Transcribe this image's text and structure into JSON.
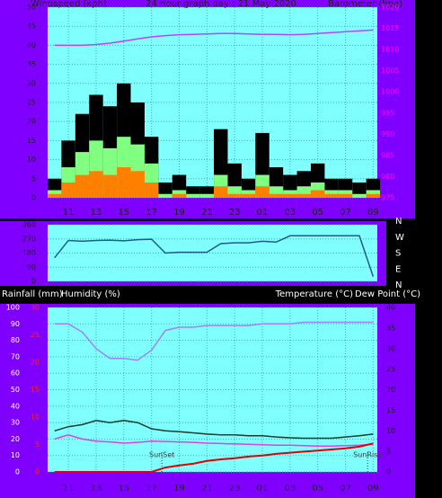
{
  "chart_data": [
    {
      "type": "bar",
      "title": "24 hour graph day : 21 May 2020",
      "y_label": "Windspeed (kph)",
      "y2_label": "Barometer (hpa)",
      "x": [
        10,
        11,
        12,
        13,
        14,
        15,
        16,
        17,
        18,
        19,
        20,
        21,
        22,
        23,
        24,
        25,
        26,
        27,
        28,
        29,
        30,
        31,
        32,
        33
      ],
      "xlim": [
        9.5,
        33.3
      ],
      "xticks": [
        11,
        13,
        15,
        17,
        19,
        21,
        23,
        {
          "value": 25,
          "label": "01"
        },
        {
          "value": 27,
          "label": "03"
        },
        {
          "value": 29,
          "label": "05"
        },
        {
          "value": 31,
          "label": "07"
        },
        {
          "value": 33,
          "label": "09"
        }
      ],
      "ylim": [
        0,
        50
      ],
      "yticks": [
        0,
        5,
        10,
        15,
        20,
        25,
        30,
        35,
        40,
        45,
        50
      ],
      "y2lim": [
        975,
        1020
      ],
      "y2ticks": [
        975,
        980,
        985,
        990,
        995,
        1000,
        1005,
        1010,
        1015,
        1020
      ],
      "grid": true,
      "series": [
        {
          "mark": "bar",
          "color": "#000000",
          "values": [
            5,
            15,
            22,
            27,
            24,
            30,
            25,
            16,
            4,
            6,
            3,
            3,
            18,
            9,
            5,
            17,
            8,
            6,
            7,
            9,
            5,
            5,
            4,
            5
          ]
        },
        {
          "mark": "bar",
          "color": "#80ff80",
          "values": [
            2,
            8,
            12,
            15,
            13,
            16,
            14,
            9,
            1,
            2,
            1,
            1,
            6,
            3,
            2,
            6,
            3,
            2,
            3,
            4,
            2,
            2,
            1,
            2
          ]
        },
        {
          "mark": "bar",
          "color": "#ff8000",
          "values": [
            1,
            4,
            6,
            7,
            6,
            8,
            7,
            4,
            0,
            1,
            0,
            0,
            3,
            1,
            1,
            3,
            1,
            1,
            1,
            2,
            1,
            1,
            0,
            1
          ]
        },
        {
          "mark": "line",
          "axis": "y2",
          "color": "#c040ff",
          "values": [
            1011,
            1011,
            1011,
            1011.2,
            1011.5,
            1012,
            1012.5,
            1013,
            1013.3,
            1013.5,
            1013.6,
            1013.7,
            1013.8,
            1013.8,
            1013.7,
            1013.6,
            1013.6,
            1013.5,
            1013.6,
            1013.8,
            1014,
            1014.2,
            1014.4,
            1014.6
          ]
        }
      ]
    },
    {
      "type": "line",
      "x": [
        10,
        11,
        12,
        13,
        14,
        15,
        16,
        17,
        18,
        19,
        20,
        21,
        22,
        23,
        24,
        25,
        26,
        27,
        28,
        29,
        30,
        31,
        32,
        33
      ],
      "xlim": [
        9.5,
        33.3
      ],
      "ylim": [
        0,
        360
      ],
      "yticks": [
        0,
        90,
        180,
        270,
        360
      ],
      "compass_labels": [
        "N",
        "W",
        "S",
        "E",
        "N"
      ],
      "grid": true,
      "series": [
        {
          "mark": "line",
          "color": "#1f5a8c",
          "values": [
            150,
            260,
            255,
            260,
            262,
            258,
            265,
            268,
            180,
            185,
            185,
            185,
            240,
            245,
            245,
            255,
            250,
            290,
            290,
            290,
            290,
            290,
            290,
            30
          ]
        }
      ]
    },
    {
      "type": "line",
      "y3_label": "Rainfall (mm)",
      "y_label": "Humidity (%)",
      "y2_label": "Temperature (°C)",
      "y2_label_b": "Dew Point (°C)",
      "x": [
        10,
        11,
        12,
        13,
        14,
        15,
        16,
        17,
        18,
        19,
        20,
        21,
        22,
        23,
        24,
        25,
        26,
        27,
        28,
        29,
        30,
        31,
        32,
        33
      ],
      "xlim": [
        9.5,
        33.3
      ],
      "xticks": [
        11,
        13,
        15,
        17,
        19,
        21,
        23,
        {
          "value": 25,
          "label": "01"
        },
        {
          "value": 27,
          "label": "03"
        },
        {
          "value": 29,
          "label": "05"
        },
        {
          "value": 31,
          "label": "07"
        },
        {
          "value": 33,
          "label": "09"
        }
      ],
      "ylim": [
        0,
        100
      ],
      "yticks": [
        0,
        10,
        20,
        30,
        40,
        50,
        60,
        70,
        80,
        90,
        100
      ],
      "y2lim": [
        0,
        40
      ],
      "y2ticks": [
        0,
        5,
        10,
        15,
        20,
        25,
        30,
        35,
        40
      ],
      "y3lim": [
        0,
        30
      ],
      "y3ticks": [
        0,
        5,
        10,
        15,
        20,
        25,
        30
      ],
      "grid": true,
      "annotations": [
        {
          "text": "SunSet",
          "x": 17.75
        },
        {
          "text": "SunRise",
          "x": 32.6
        }
      ],
      "series": [
        {
          "mark": "line",
          "color": "#a080ff",
          "values": [
            90,
            90,
            85,
            75,
            69,
            69,
            68,
            74,
            86,
            88,
            88,
            89,
            89,
            89,
            89,
            90,
            90,
            90,
            91,
            91,
            91,
            91,
            91,
            91
          ]
        },
        {
          "mark": "line",
          "axis": "y2",
          "color": "#1a3a2a",
          "values": [
            10,
            11,
            11.5,
            12.5,
            12,
            12.5,
            12,
            10.5,
            10,
            9.8,
            9.5,
            9.2,
            9,
            9,
            8.8,
            8.8,
            8.5,
            8.3,
            8.2,
            8.2,
            8.2,
            8.5,
            8.8,
            9.2
          ]
        },
        {
          "mark": "line",
          "axis": "y2",
          "color": "#e040e0",
          "values": [
            8,
            9,
            8,
            7.5,
            7.3,
            7,
            7.2,
            7.5,
            7.4,
            7.3,
            7.2,
            7,
            6.9,
            6.8,
            6.7,
            6.6,
            6.5,
            6.5,
            6.4,
            6.3,
            6.3,
            6.4,
            6.5,
            6.7
          ]
        },
        {
          "mark": "line",
          "axis": "y3",
          "color": "#e00000",
          "values": [
            0,
            0,
            0,
            0,
            0,
            0,
            0,
            0,
            0.8,
            1.2,
            1.5,
            2,
            2.3,
            2.5,
            2.8,
            3,
            3.3,
            3.5,
            3.7,
            3.9,
            4.1,
            4.3,
            4.6,
            5.2
          ]
        }
      ]
    }
  ]
}
